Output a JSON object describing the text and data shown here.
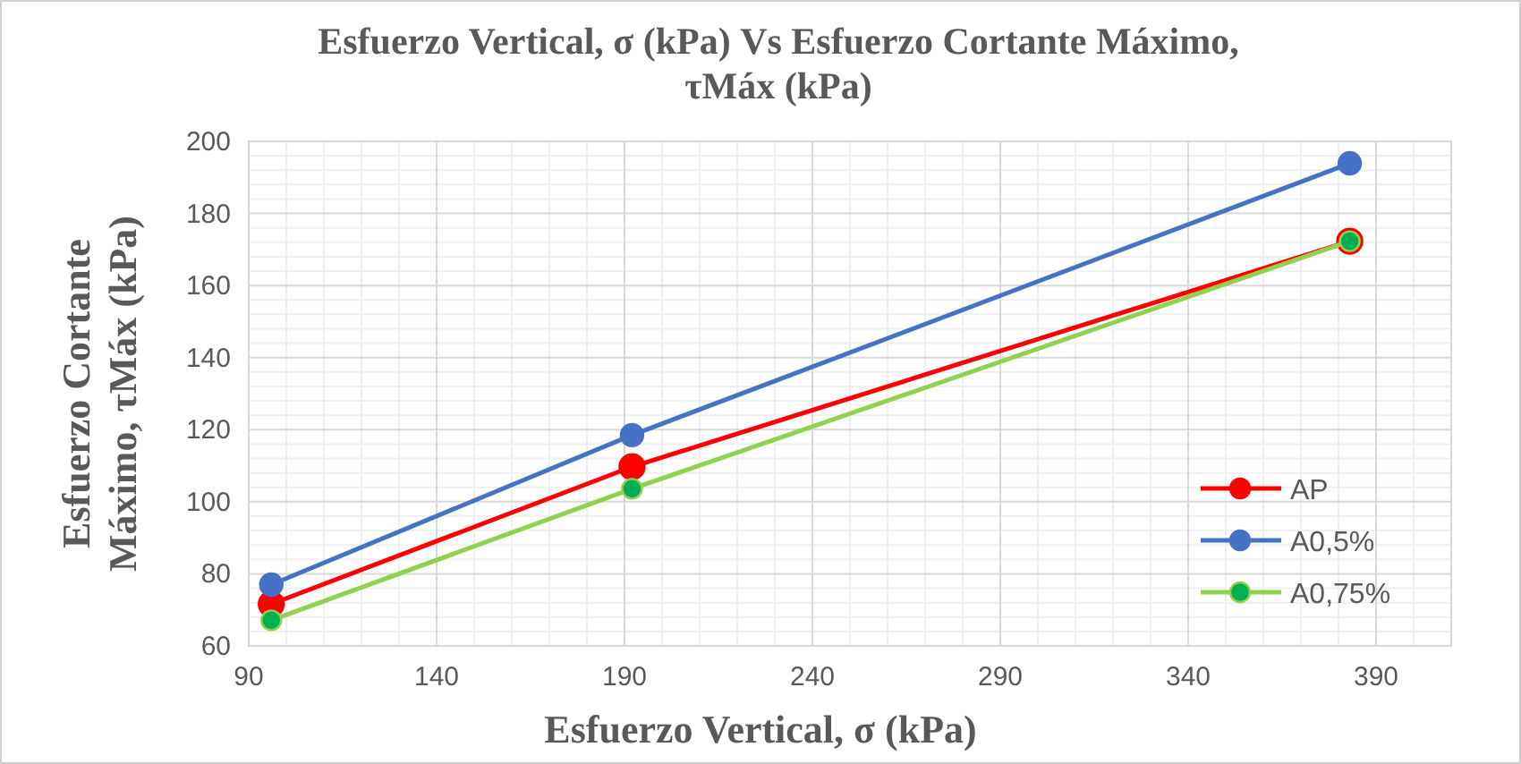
{
  "chart_data": {
    "type": "line",
    "title": "Esfuerzo Vertical, σ (kPa) Vs Esfuerzo Cortante Máximo, τMáx (kPa)",
    "xlabel": "Esfuerzo Vertical, σ (kPa)",
    "ylabel": "Esfuerzo Cortante Máximo, τMáx (kPa)",
    "x": [
      96,
      192,
      383
    ],
    "series": [
      {
        "name": "AP",
        "color": "#ff0000",
        "values": [
          71.6,
          109.7,
          172.3
        ]
      },
      {
        "name": "A0,5%",
        "color": "#4472c4",
        "values": [
          77,
          118.5,
          193.9
        ]
      },
      {
        "name": "A0,75%",
        "color": "#92d050",
        "values": [
          67.1,
          103.6,
          172.3
        ]
      }
    ],
    "xlim": [
      90,
      410
    ],
    "xticks": [
      90,
      140,
      190,
      240,
      290,
      340,
      390
    ],
    "ylim": [
      60,
      200
    ],
    "yticks": [
      60,
      80,
      100,
      120,
      140,
      160,
      180,
      200
    ],
    "grid": true,
    "legend": "bottom right",
    "marker": "circle",
    "line_style": "solid"
  }
}
